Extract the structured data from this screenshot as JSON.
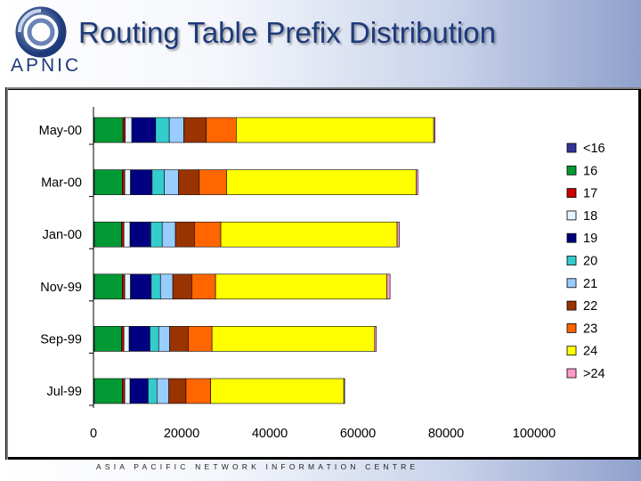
{
  "title": "Routing Table Prefix Distribution",
  "logo": {
    "text": "APNIC"
  },
  "footer": "ASIA PACIFIC NETWORK INFORMATION CENTRE",
  "chart_data": {
    "type": "bar",
    "orientation": "horizontal",
    "stacked": true,
    "categories": [
      "May-00",
      "Mar-00",
      "Jan-00",
      "Nov-99",
      "Sep-99",
      "Jul-99"
    ],
    "xlim": [
      0,
      100000
    ],
    "xticks": [
      0,
      20000,
      40000,
      60000,
      80000,
      100000
    ],
    "legend_position": "right",
    "grid": false,
    "series": [
      {
        "name": "<16",
        "color": "#333399",
        "values": [
          200,
          200,
          200,
          200,
          200,
          200
        ]
      },
      {
        "name": "16",
        "color": "#009933",
        "values": [
          6500,
          6400,
          6200,
          6400,
          6200,
          6400
        ]
      },
      {
        "name": "17",
        "color": "#cc0000",
        "values": [
          500,
          500,
          500,
          500,
          500,
          500
        ]
      },
      {
        "name": "18",
        "color": "#e6f5ff",
        "values": [
          1500,
          1300,
          1400,
          1300,
          1200,
          1200
        ]
      },
      {
        "name": "19",
        "color": "#000080",
        "values": [
          5400,
          4900,
          4700,
          4700,
          4700,
          4100
        ]
      },
      {
        "name": "20",
        "color": "#33cccc",
        "values": [
          3100,
          2800,
          2600,
          2100,
          2000,
          2000
        ]
      },
      {
        "name": "21",
        "color": "#99ccff",
        "values": [
          3300,
          3200,
          3000,
          2800,
          2500,
          2700
        ]
      },
      {
        "name": "22",
        "color": "#993300",
        "values": [
          5100,
          4700,
          4300,
          4300,
          4200,
          3900
        ]
      },
      {
        "name": "23",
        "color": "#ff6600",
        "values": [
          6800,
          6200,
          6000,
          5400,
          5400,
          5600
        ]
      },
      {
        "name": "24",
        "color": "#ffff00",
        "values": [
          44800,
          43000,
          40000,
          38900,
          36900,
          30200
        ]
      },
      {
        "name": ">24",
        "color": "#ff99cc",
        "values": [
          300,
          400,
          500,
          700,
          400,
          200
        ]
      }
    ]
  }
}
